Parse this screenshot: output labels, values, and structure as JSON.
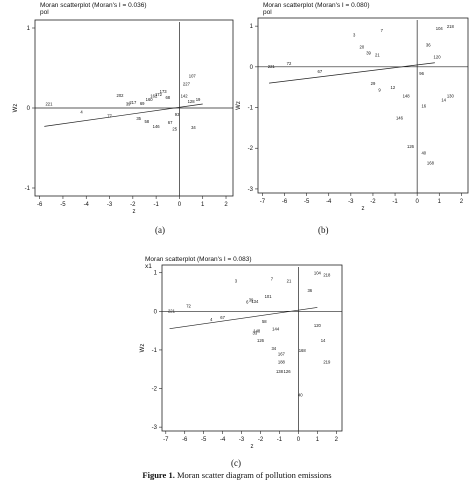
{
  "chart_data": [
    {
      "type": "scatter",
      "title": "Moran scatterplot (Moran's I = 0.036)",
      "subtitle": "pol",
      "xlabel": "z",
      "ylabel": "Wz",
      "xlim": [
        -6.2,
        2.3
      ],
      "ylim": [
        -1.1,
        1.1
      ],
      "xticks": [
        -6,
        -5,
        -4,
        -3,
        -2,
        -1,
        0,
        1,
        2
      ],
      "yticks": [
        -1,
        0,
        1
      ],
      "fit_line": [
        [
          -5.8,
          -0.23
        ],
        [
          1.0,
          0.05
        ]
      ],
      "points": [
        {
          "x": -5.6,
          "y": 0.03,
          "label": "221"
        },
        {
          "x": -4.2,
          "y": -0.07,
          "label": "4"
        },
        {
          "x": -3.0,
          "y": -0.12,
          "label": "77"
        },
        {
          "x": -2.55,
          "y": 0.14,
          "label": "202"
        },
        {
          "x": -2.2,
          "y": 0.03,
          "label": "39"
        },
        {
          "x": -2.0,
          "y": 0.05,
          "label": "217"
        },
        {
          "x": -1.6,
          "y": 0.04,
          "label": "69"
        },
        {
          "x": -1.3,
          "y": 0.09,
          "label": "160"
        },
        {
          "x": -1.1,
          "y": 0.13,
          "label": "162"
        },
        {
          "x": -0.9,
          "y": 0.15,
          "label": "172"
        },
        {
          "x": -0.7,
          "y": 0.19,
          "label": "173"
        },
        {
          "x": -0.5,
          "y": 0.11,
          "label": "68"
        },
        {
          "x": -1.75,
          "y": -0.15,
          "label": "35"
        },
        {
          "x": -1.4,
          "y": -0.19,
          "label": "58"
        },
        {
          "x": -1.0,
          "y": -0.25,
          "label": "146"
        },
        {
          "x": -0.4,
          "y": -0.2,
          "label": "67"
        },
        {
          "x": -0.2,
          "y": -0.28,
          "label": "25"
        },
        {
          "x": 0.3,
          "y": 0.28,
          "label": "227"
        },
        {
          "x": 0.55,
          "y": 0.38,
          "label": "107"
        },
        {
          "x": 0.6,
          "y": -0.26,
          "label": "34"
        },
        {
          "x": 0.5,
          "y": 0.06,
          "label": "128"
        },
        {
          "x": 0.2,
          "y": 0.13,
          "label": "142"
        },
        {
          "x": -0.1,
          "y": -0.1,
          "label": "93"
        },
        {
          "x": 0.8,
          "y": 0.09,
          "label": "19"
        }
      ]
    },
    {
      "type": "scatter",
      "title": "Moran scatterplot (Moran's I = 0.080)",
      "subtitle": "pol",
      "xlabel": "z",
      "ylabel": "Wz",
      "xlim": [
        -7.2,
        2.3
      ],
      "ylim": [
        -3.1,
        1.2
      ],
      "xticks": [
        -7,
        -6,
        -5,
        -4,
        -3,
        -2,
        -1,
        0,
        1,
        2
      ],
      "yticks": [
        -3,
        -2,
        -1,
        0,
        1
      ],
      "fit_line": [
        [
          -6.7,
          -0.4
        ],
        [
          0.8,
          0.1
        ]
      ],
      "points": [
        {
          "x": -6.6,
          "y": -0.03,
          "label": "221"
        },
        {
          "x": -5.8,
          "y": 0.05,
          "label": "72"
        },
        {
          "x": -4.4,
          "y": -0.15,
          "label": "67"
        },
        {
          "x": -2.85,
          "y": 0.75,
          "label": "3"
        },
        {
          "x": -2.5,
          "y": 0.45,
          "label": "20"
        },
        {
          "x": -2.2,
          "y": 0.3,
          "label": "39"
        },
        {
          "x": -1.6,
          "y": 0.85,
          "label": "7"
        },
        {
          "x": -1.8,
          "y": 0.25,
          "label": "21"
        },
        {
          "x": -2.0,
          "y": -0.45,
          "label": "29"
        },
        {
          "x": -1.7,
          "y": -0.6,
          "label": "9"
        },
        {
          "x": -1.1,
          "y": -0.55,
          "label": "12"
        },
        {
          "x": -0.5,
          "y": -0.75,
          "label": "148"
        },
        {
          "x": -0.8,
          "y": -1.3,
          "label": "146"
        },
        {
          "x": 0.3,
          "y": -1.0,
          "label": "16"
        },
        {
          "x": -0.3,
          "y": -2.0,
          "label": "126"
        },
        {
          "x": 0.3,
          "y": -2.15,
          "label": "40"
        },
        {
          "x": 0.6,
          "y": -2.4,
          "label": "168"
        },
        {
          "x": 1.2,
          "y": -0.85,
          "label": "14"
        },
        {
          "x": 1.0,
          "y": 0.9,
          "label": "104"
        },
        {
          "x": 1.5,
          "y": 0.95,
          "label": "218"
        },
        {
          "x": 1.5,
          "y": -0.75,
          "label": "130"
        },
        {
          "x": 0.5,
          "y": 0.5,
          "label": "36"
        },
        {
          "x": 0.9,
          "y": 0.2,
          "label": "120"
        },
        {
          "x": 0.2,
          "y": -0.2,
          "label": "96"
        }
      ]
    },
    {
      "type": "scatter",
      "title": "Moran scatterplot (Moran's I = 0.083)",
      "subtitle": "x1",
      "xlabel": "z",
      "ylabel": "Wz",
      "xlim": [
        -7.2,
        2.3
      ],
      "ylim": [
        -3.1,
        1.2
      ],
      "xticks": [
        -7,
        -6,
        -5,
        -4,
        -3,
        -2,
        -1,
        0,
        1,
        2
      ],
      "yticks": [
        -3,
        -2,
        -1,
        0,
        1
      ],
      "fit_line": [
        [
          -6.8,
          -0.45
        ],
        [
          1.0,
          0.1
        ]
      ],
      "points": [
        {
          "x": -6.7,
          "y": -0.03,
          "label": "221"
        },
        {
          "x": -5.8,
          "y": 0.1,
          "label": "72"
        },
        {
          "x": -4.6,
          "y": -0.25,
          "label": "4"
        },
        {
          "x": -4.0,
          "y": -0.2,
          "label": "67"
        },
        {
          "x": -3.3,
          "y": 0.75,
          "label": "3"
        },
        {
          "x": -2.7,
          "y": 0.2,
          "label": "6"
        },
        {
          "x": -2.5,
          "y": 0.25,
          "label": "39"
        },
        {
          "x": -2.3,
          "y": 0.22,
          "label": "134"
        },
        {
          "x": -1.4,
          "y": 0.8,
          "label": "7"
        },
        {
          "x": -0.5,
          "y": 0.75,
          "label": "21"
        },
        {
          "x": -1.6,
          "y": 0.35,
          "label": "101"
        },
        {
          "x": -1.8,
          "y": -0.3,
          "label": "58"
        },
        {
          "x": -2.3,
          "y": -0.6,
          "label": "33"
        },
        {
          "x": -2.2,
          "y": -0.55,
          "label": "148"
        },
        {
          "x": -2.0,
          "y": -0.8,
          "label": "126"
        },
        {
          "x": -1.2,
          "y": -0.5,
          "label": "144"
        },
        {
          "x": -1.3,
          "y": -1.0,
          "label": "34"
        },
        {
          "x": -0.9,
          "y": -1.15,
          "label": "167"
        },
        {
          "x": -0.9,
          "y": -1.35,
          "label": "188"
        },
        {
          "x": -0.6,
          "y": -1.6,
          "label": "126"
        },
        {
          "x": 0.2,
          "y": -1.05,
          "label": "168"
        },
        {
          "x": 0.1,
          "y": -2.2,
          "label": "40"
        },
        {
          "x": 1.0,
          "y": -0.4,
          "label": "120"
        },
        {
          "x": 1.3,
          "y": -0.8,
          "label": "14"
        },
        {
          "x": 1.0,
          "y": 0.95,
          "label": "104"
        },
        {
          "x": 1.5,
          "y": 0.9,
          "label": "218"
        },
        {
          "x": 1.5,
          "y": -1.35,
          "label": "219"
        },
        {
          "x": 0.6,
          "y": 0.5,
          "label": "36"
        },
        {
          "x": -1.0,
          "y": -1.6,
          "label": "138"
        }
      ]
    }
  ],
  "panel_letters": [
    "(a)",
    "(b)",
    "(c)"
  ],
  "caption": {
    "label": "Figure 1.",
    "text": "Moran scatter diagram of pollution emissions"
  }
}
